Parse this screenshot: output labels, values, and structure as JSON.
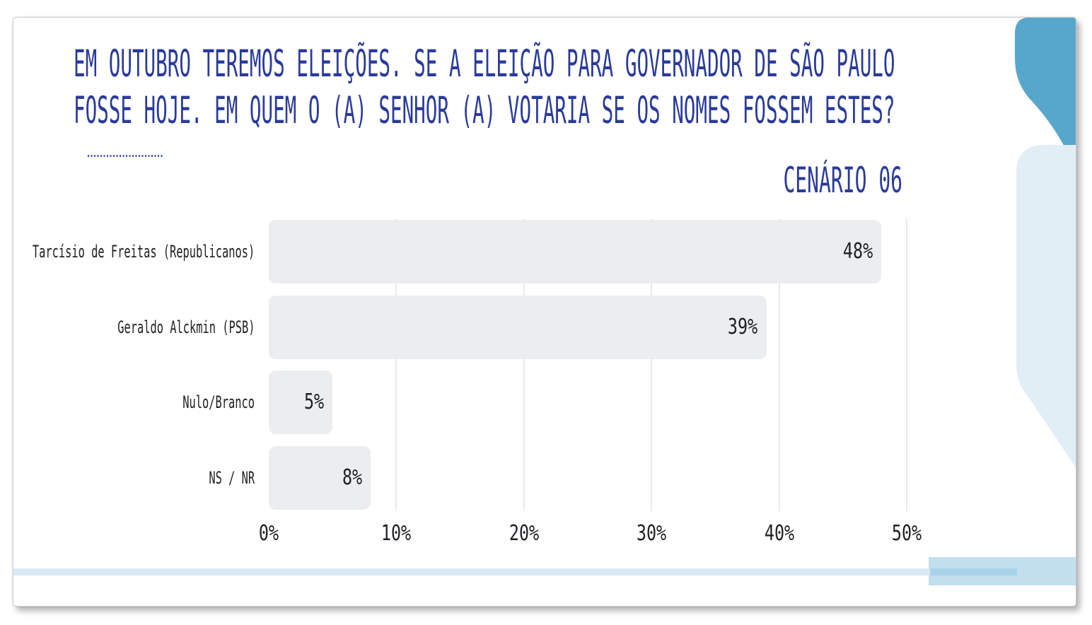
{
  "slide": {
    "title_line1": "EM OUTUBRO TEREMOS ELEIÇÕES. SE A ELEIÇÃO PARA GOVERNADOR DE SÃO PAULO",
    "title_line2": "FOSSE HOJE. EM QUEM O (A) SENHOR (A) VOTARIA SE OS NOMES FOSSEM ESTES?",
    "scenario_label": "CENÁRIO 06"
  },
  "chart_data": {
    "type": "bar",
    "orientation": "horizontal",
    "categories": [
      "Tarcísio de Freitas (Republicanos)",
      "Geraldo Alckmin (PSB)",
      "Nulo/Branco",
      "NS / NR"
    ],
    "values": [
      48,
      39,
      5,
      8
    ],
    "value_labels": [
      "48%",
      "39%",
      "5%",
      "8%"
    ],
    "x_ticks": [
      0,
      10,
      20,
      30,
      40,
      50
    ],
    "x_tick_labels": [
      "0%",
      "10%",
      "20%",
      "30%",
      "40%",
      "50%"
    ],
    "xlim": [
      0,
      50
    ],
    "grid": "vertical-only",
    "bar_color": "#ebedee",
    "value_label_position": "inside-right"
  },
  "colors": {
    "title_navy": "#2a3a9a",
    "chart_text": "#202124",
    "bar_fill": "#ebedee",
    "gridline": "#e8eaec",
    "deco_blue": "#57a7cc",
    "deco_light_panel": "#e1eef6",
    "strip_light": "#d9eaf4",
    "strip_medium": "#c2dfee",
    "strip_dark": "#a8d3e8",
    "dotted_line": "#3f55ae",
    "card_border": "#cccccc"
  }
}
